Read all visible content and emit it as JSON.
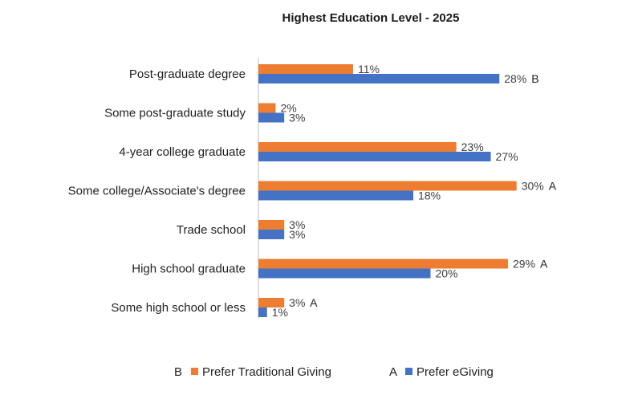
{
  "chart_data": {
    "type": "bar",
    "orientation": "horizontal",
    "title": "Highest Education Level  - 2025",
    "categories": [
      "Post-graduate degree",
      "Some post-graduate study",
      "4-year college graduate",
      "Some college/Associate's degree",
      "Trade school",
      "High school graduate",
      "Some high school or less"
    ],
    "series": [
      {
        "name": "Prefer Traditional Giving",
        "letter": "B",
        "color": "#ED7D31",
        "values": [
          11,
          2,
          23,
          30,
          3,
          29,
          3
        ],
        "labels": [
          "11%",
          "2%",
          "23%",
          "30%",
          "3%",
          "29%",
          "3%"
        ],
        "significance": [
          "",
          "",
          "",
          "A",
          "",
          "A",
          "A"
        ]
      },
      {
        "name": "Prefer eGiving",
        "letter": "A",
        "color": "#4472C4",
        "values": [
          28,
          3,
          27,
          18,
          3,
          20,
          1
        ],
        "labels": [
          "28%",
          "3%",
          "27%",
          "18%",
          "3%",
          "20%",
          "1%"
        ],
        "significance": [
          "B",
          "",
          "",
          "",
          "",
          "",
          ""
        ]
      }
    ],
    "xlim": [
      0,
      32
    ],
    "legend_position": "bottom",
    "grid": false
  }
}
